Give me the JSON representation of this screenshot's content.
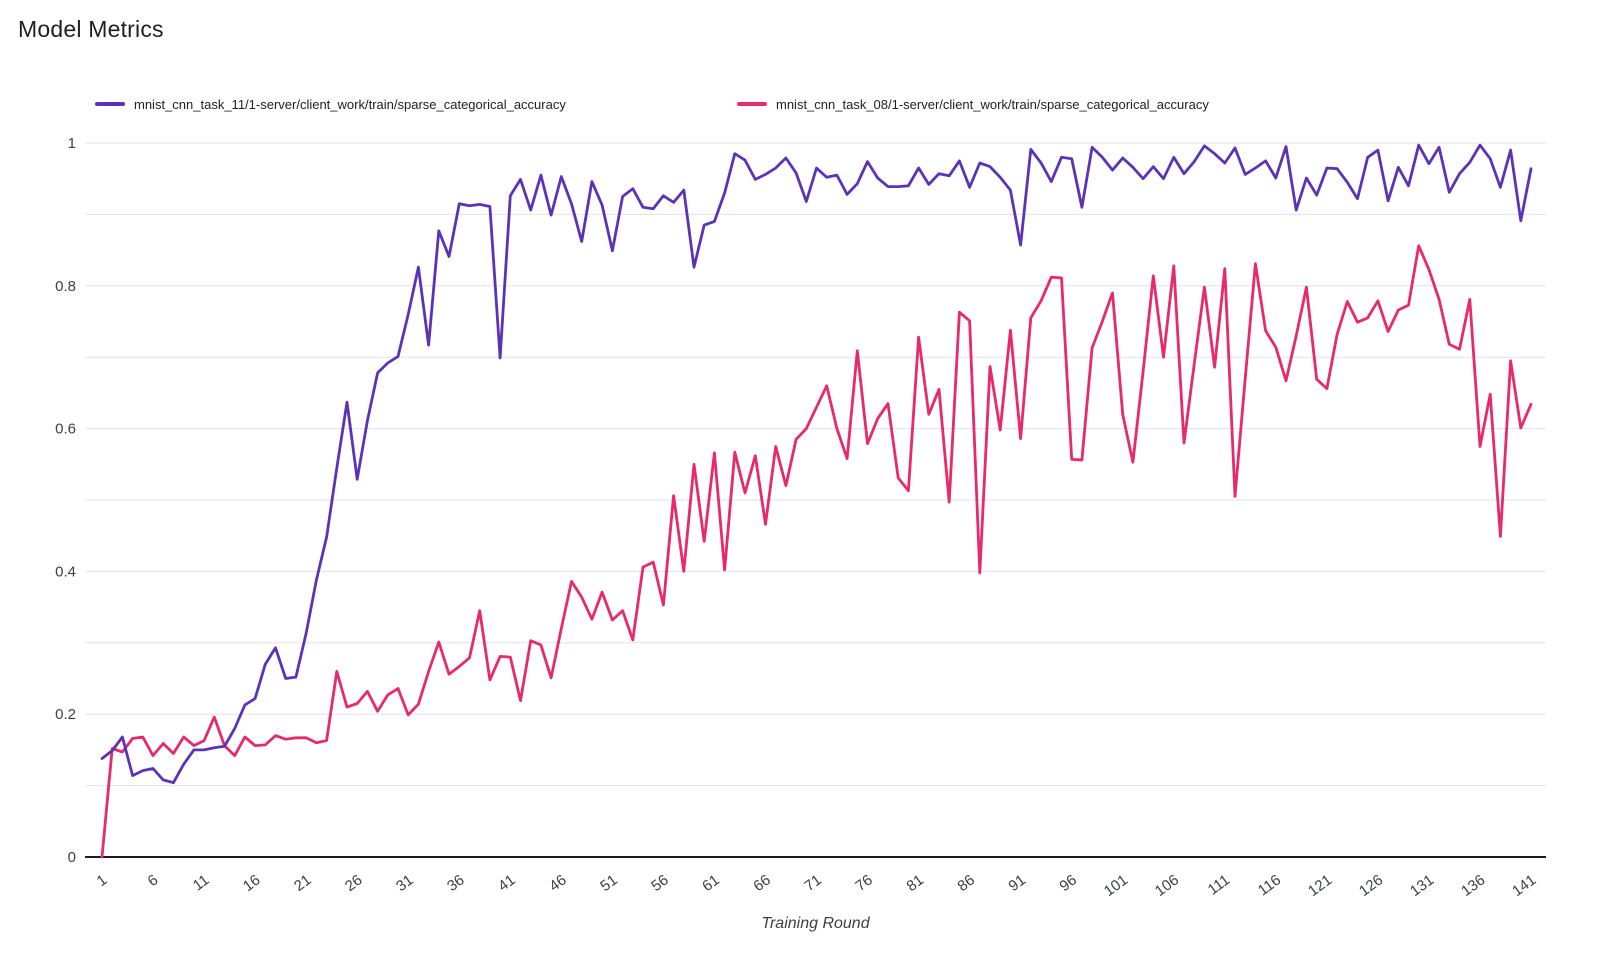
{
  "page": {
    "title": "Model Metrics",
    "background": "#ffffff"
  },
  "legend": {
    "position": "top",
    "items": [
      {
        "label": "mnist_cnn_task_11/1-server/client_work/train/sparse_categorical_accuracy",
        "color": "#5C33B7"
      },
      {
        "label": "mnist_cnn_task_08/1-server/client_work/train/sparse_categorical_accuracy",
        "color": "#E92A68"
      }
    ]
  },
  "axes": {
    "x_title": "Training Round",
    "x_tick_labels": [
      "1",
      "6",
      "11",
      "16",
      "21",
      "26",
      "31",
      "36",
      "41",
      "46",
      "51",
      "56",
      "61",
      "66",
      "71",
      "76",
      "81",
      "86",
      "91",
      "96",
      "101",
      "106",
      "111",
      "116",
      "121",
      "126",
      "131",
      "136",
      "141"
    ],
    "y_tick_labels": [
      "0",
      "0.2",
      "0.4",
      "0.6",
      "0.8",
      "1"
    ],
    "grid_color": "#e3e3e3",
    "axis_line_color": "#1b1b1b",
    "tick_text_color": "#3c4043"
  },
  "chart_data": {
    "type": "line",
    "title": "Model Metrics",
    "xlabel": "Training Round",
    "ylabel": "",
    "x_first": 1,
    "x_step": 1,
    "x_count": 141,
    "x_ticks": [
      1,
      6,
      11,
      16,
      21,
      26,
      31,
      36,
      41,
      46,
      51,
      56,
      61,
      66,
      71,
      76,
      81,
      86,
      91,
      96,
      101,
      106,
      111,
      116,
      121,
      126,
      131,
      136,
      141
    ],
    "ylim": [
      0,
      1
    ],
    "grid": "horizontal lines every 0.1, labels every 0.2",
    "legend_position": "top",
    "series": [
      {
        "name": "mnist_cnn_task_11/1-server/client_work/train/sparse_categorical_accuracy",
        "color": "#5C33B7",
        "values": [
          0.138,
          0.149,
          0.168,
          0.114,
          0.121,
          0.124,
          0.108,
          0.104,
          0.13,
          0.15,
          0.15,
          0.153,
          0.155,
          0.18,
          0.213,
          0.222,
          0.27,
          0.293,
          0.25,
          0.252,
          0.313,
          0.388,
          0.448,
          0.545,
          0.637,
          0.529,
          0.611,
          0.678,
          0.692,
          0.701,
          0.76,
          0.826,
          0.717,
          0.877,
          0.841,
          0.915,
          0.912,
          0.914,
          0.911,
          0.699,
          0.926,
          0.949,
          0.906,
          0.955,
          0.899,
          0.953,
          0.915,
          0.862,
          0.946,
          0.913,
          0.849,
          0.925,
          0.936,
          0.91,
          0.908,
          0.926,
          0.917,
          0.934,
          0.826,
          0.885,
          0.89,
          0.93,
          0.985,
          0.976,
          0.949,
          0.956,
          0.965,
          0.979,
          0.958,
          0.918,
          0.965,
          0.952,
          0.955,
          0.928,
          0.943,
          0.974,
          0.951,
          0.939,
          0.939,
          0.94,
          0.965,
          0.942,
          0.957,
          0.954,
          0.975,
          0.938,
          0.972,
          0.967,
          0.952,
          0.934,
          0.857,
          0.991,
          0.972,
          0.946,
          0.98,
          0.978,
          0.91,
          0.994,
          0.98,
          0.962,
          0.979,
          0.966,
          0.95,
          0.967,
          0.95,
          0.98,
          0.957,
          0.974,
          0.996,
          0.985,
          0.972,
          0.993,
          0.956,
          0.965,
          0.975,
          0.951,
          0.995,
          0.906,
          0.951,
          0.927,
          0.965,
          0.964,
          0.945,
          0.922,
          0.98,
          0.99,
          0.919,
          0.966,
          0.94,
          0.997,
          0.971,
          0.994,
          0.931,
          0.957,
          0.973,
          0.997,
          0.978,
          0.938,
          0.99,
          0.891,
          0.964
        ]
      },
      {
        "name": "mnist_cnn_task_08/1-server/client_work/train/sparse_categorical_accuracy",
        "color": "#E92A68",
        "values": [
          0.0,
          0.152,
          0.147,
          0.166,
          0.168,
          0.142,
          0.159,
          0.145,
          0.168,
          0.156,
          0.163,
          0.196,
          0.156,
          0.142,
          0.168,
          0.156,
          0.157,
          0.17,
          0.165,
          0.167,
          0.167,
          0.16,
          0.163,
          0.26,
          0.21,
          0.215,
          0.232,
          0.204,
          0.227,
          0.236,
          0.199,
          0.214,
          0.26,
          0.301,
          0.256,
          0.267,
          0.279,
          0.345,
          0.248,
          0.281,
          0.28,
          0.219,
          0.303,
          0.297,
          0.251,
          0.32,
          0.386,
          0.364,
          0.333,
          0.371,
          0.332,
          0.345,
          0.304,
          0.406,
          0.413,
          0.353,
          0.506,
          0.4,
          0.55,
          0.442,
          0.566,
          0.402,
          0.567,
          0.51,
          0.562,
          0.466,
          0.575,
          0.52,
          0.585,
          0.6,
          0.63,
          0.66,
          0.6,
          0.558,
          0.709,
          0.579,
          0.614,
          0.635,
          0.531,
          0.513,
          0.728,
          0.62,
          0.655,
          0.497,
          0.763,
          0.751,
          0.398,
          0.687,
          0.598,
          0.738,
          0.586,
          0.755,
          0.779,
          0.812,
          0.811,
          0.557,
          0.556,
          0.713,
          0.75,
          0.79,
          0.62,
          0.553,
          0.68,
          0.814,
          0.7,
          0.828,
          0.58,
          0.69,
          0.798,
          0.686,
          0.824,
          0.505,
          0.67,
          0.831,
          0.737,
          0.714,
          0.667,
          0.73,
          0.798,
          0.669,
          0.656,
          0.732,
          0.778,
          0.749,
          0.755,
          0.779,
          0.736,
          0.766,
          0.773,
          0.856,
          0.823,
          0.781,
          0.718,
          0.711,
          0.781,
          0.575,
          0.648,
          0.449,
          0.695,
          0.601,
          0.634
        ]
      }
    ]
  }
}
